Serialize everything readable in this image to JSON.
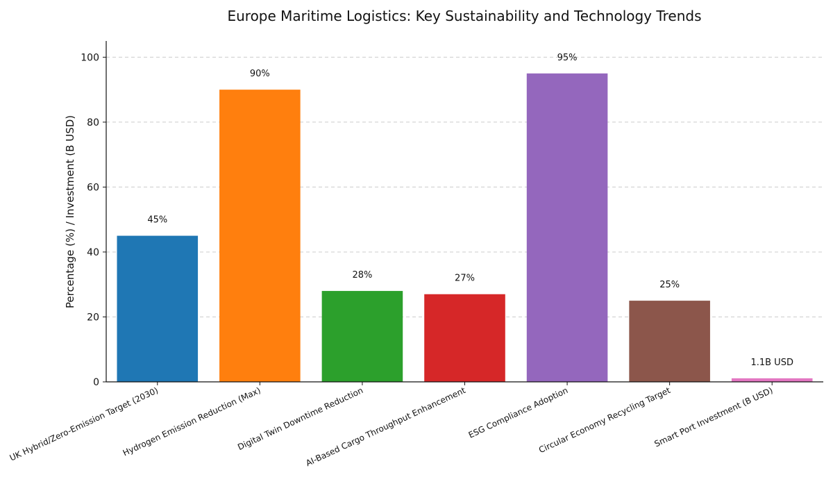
{
  "chart_data": {
    "type": "bar",
    "title": "Europe Maritime Logistics: Key Sustainability and Technology Trends",
    "xlabel": "",
    "ylabel": "Percentage (%) / Investment (B USD)",
    "ylim": [
      0,
      105
    ],
    "yticks": [
      0,
      20,
      40,
      60,
      80,
      100
    ],
    "grid": "y-dashed",
    "categories": [
      "UK Hybrid/Zero-Emission Target (2030)",
      "Hydrogen Emission Reduction (Max)",
      "Digital Twin Downtime Reduction",
      "AI-Based Cargo Throughput Enhancement",
      "ESG Compliance Adoption",
      "Circular Economy Recycling Target",
      "Smart Port Investment (B USD)"
    ],
    "values": [
      45,
      90,
      28,
      27,
      95,
      25,
      1.1
    ],
    "data_labels": [
      "45%",
      "90%",
      "28%",
      "27%",
      "95%",
      "25%",
      "1.1B USD"
    ],
    "colors": [
      "#1f77b4",
      "#ff7f0e",
      "#2ca02c",
      "#d62728",
      "#9467bd",
      "#8c564b",
      "#e377c2"
    ]
  }
}
